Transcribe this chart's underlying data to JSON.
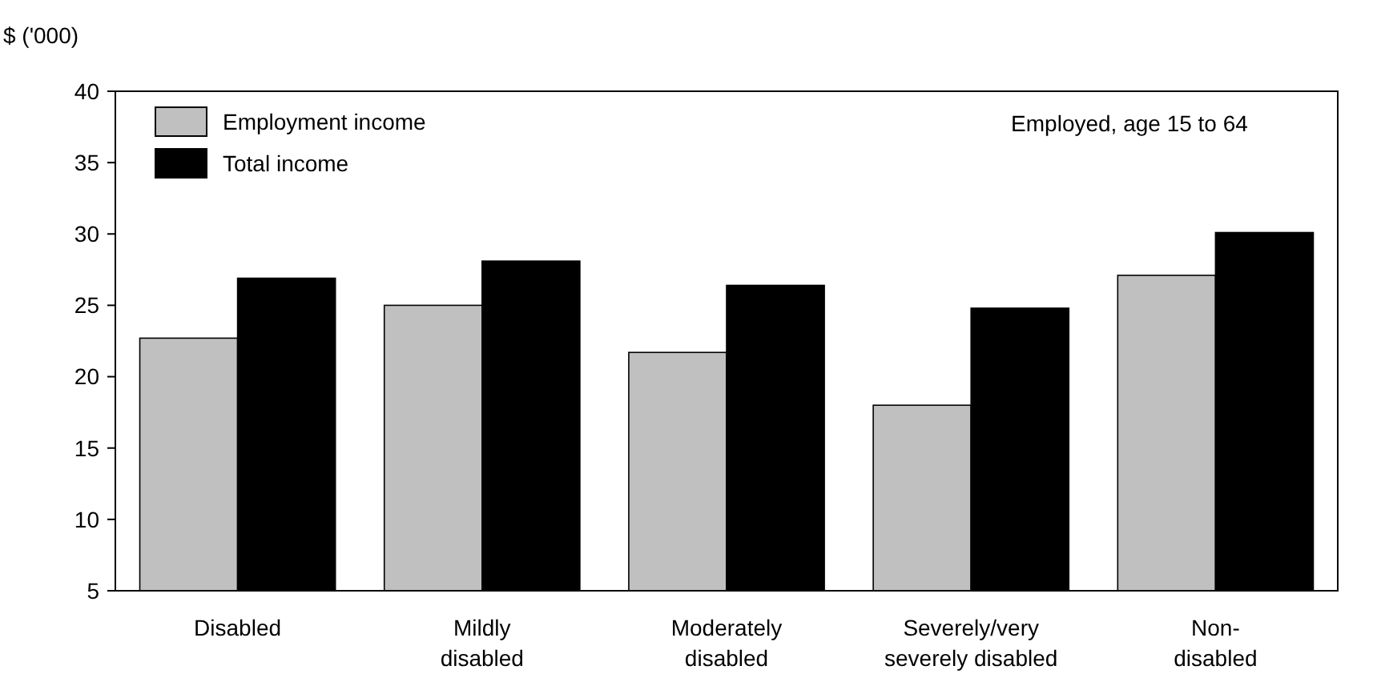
{
  "chart_data": {
    "type": "bar",
    "ylabel": "$ ('000)",
    "categories": [
      "Disabled",
      "Mildly disabled",
      "Moderately disabled",
      "Severely/very severely disabled",
      "Non-disabled"
    ],
    "series": [
      {
        "name": "Employment income",
        "color": "#c0c0c0",
        "values": [
          22.7,
          25.0,
          21.7,
          18.0,
          27.1
        ]
      },
      {
        "name": "Total income",
        "color": "#000000",
        "values": [
          26.9,
          28.1,
          26.4,
          24.8,
          30.1
        ]
      }
    ],
    "ylim": [
      5,
      40
    ],
    "yticks": [
      5,
      10,
      15,
      20,
      25,
      30,
      35,
      40
    ],
    "grid": false,
    "legend": "top left",
    "annotations": [
      "Employed, age 15 to 64"
    ]
  }
}
